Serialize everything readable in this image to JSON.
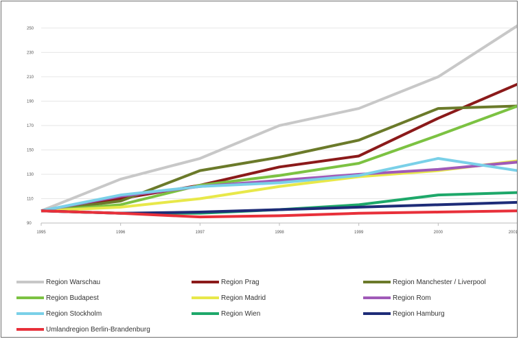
{
  "chart_data": {
    "type": "line",
    "title": "",
    "xlabel": "",
    "ylabel": "",
    "x": [
      "1995",
      "1996",
      "1997",
      "1998",
      "1999",
      "2000",
      "2001"
    ],
    "y_ticks": [
      "90",
      "110",
      "130",
      "150",
      "170",
      "190",
      "210",
      "230",
      "250"
    ],
    "ylim": [
      90,
      255
    ],
    "grid": true,
    "legend_position": "bottom",
    "series": [
      {
        "name": "Region Warschau",
        "color": "#c8c8c8",
        "values": [
          100,
          126,
          143,
          170,
          184,
          210,
          252
        ]
      },
      {
        "name": "Region Prag",
        "color": "#8b1a1a",
        "values": [
          100,
          110,
          121,
          136,
          145,
          176,
          204
        ]
      },
      {
        "name": "Region Manchester / Liverpool",
        "color": "#6b7a2a",
        "values": [
          100,
          108,
          133,
          144,
          158,
          184,
          186
        ]
      },
      {
        "name": "Region Budapest",
        "color": "#7cc242",
        "values": [
          100,
          105,
          121,
          129,
          139,
          162,
          186
        ]
      },
      {
        "name": "Region Madrid",
        "color": "#e8e84a",
        "values": [
          100,
          103,
          110,
          120,
          128,
          133,
          141
        ]
      },
      {
        "name": "Region Rom",
        "color": "#a05ab8",
        "values": [
          100,
          112,
          120,
          125,
          130,
          134,
          140
        ]
      },
      {
        "name": "Region Stockholm",
        "color": "#7ad0e8",
        "values": [
          100,
          113,
          120,
          123,
          129,
          143,
          133
        ]
      },
      {
        "name": "Region Wien",
        "color": "#1ea86a",
        "values": [
          100,
          98,
          98,
          101,
          105,
          113,
          115
        ]
      },
      {
        "name": "Region Hamburg",
        "color": "#1e2c78",
        "values": [
          100,
          98,
          99,
          101,
          103,
          105,
          107
        ]
      },
      {
        "name": "Umlandregion Berlin-Brandenburg",
        "color": "#e8303a",
        "values": [
          100,
          98,
          95,
          96,
          98,
          99,
          100
        ]
      }
    ]
  }
}
